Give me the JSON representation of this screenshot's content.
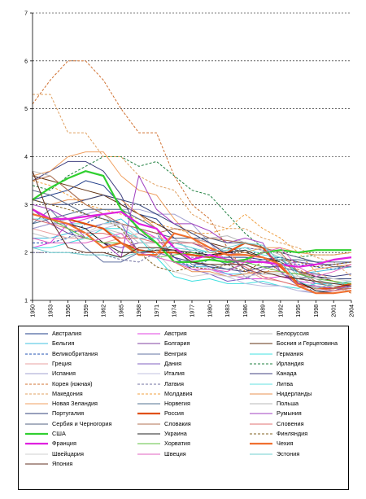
{
  "chart_data": {
    "type": "line",
    "title": "",
    "xlabel": "",
    "ylabel": "",
    "ylim": [
      1,
      7
    ],
    "yticks": [
      "1",
      "2",
      "3",
      "4",
      "5",
      "6",
      "7"
    ],
    "x": [
      1950,
      1953,
      1956,
      1959,
      1962,
      1965,
      1968,
      1971,
      1974,
      1977,
      1980,
      1983,
      1986,
      1989,
      1992,
      1995,
      1998,
      2001,
      2004
    ],
    "xticks": [
      "1950",
      "1953",
      "1956",
      "1959",
      "1962",
      "1965",
      "1968",
      "1971",
      "1974",
      "1977",
      "1980",
      "1983",
      "1986",
      "1989",
      "1992",
      "1995",
      "1998",
      "2001",
      "2004"
    ],
    "grid": "horizontal dashed",
    "legend_position": "bottom",
    "series": [
      {
        "name": "Австралия",
        "color": "#1f3c88",
        "dash": "solid",
        "width": 1,
        "values": [
          3.1,
          3.2,
          3.3,
          3.5,
          3.4,
          3.0,
          2.8,
          2.7,
          2.3,
          2.0,
          1.9,
          1.9,
          1.9,
          1.85,
          1.9,
          1.8,
          1.75,
          1.75,
          1.8
        ]
      },
      {
        "name": "Австрия",
        "color": "#e040e0",
        "dash": "solid",
        "width": 1,
        "values": [
          2.1,
          2.2,
          2.6,
          2.7,
          2.8,
          2.6,
          2.5,
          2.3,
          1.9,
          1.65,
          1.65,
          1.55,
          1.45,
          1.45,
          1.5,
          1.4,
          1.35,
          1.35,
          1.4
        ]
      },
      {
        "name": "Белоруссия",
        "color": "#c0c0c0",
        "dash": "solid",
        "width": 1,
        "values": [
          2.8,
          2.7,
          2.7,
          2.6,
          2.5,
          2.4,
          2.3,
          2.3,
          2.2,
          2.1,
          2.0,
          2.05,
          2.1,
          2.05,
          1.9,
          1.5,
          1.3,
          1.25,
          1.2
        ]
      },
      {
        "name": "Бельгия",
        "color": "#40c0e0",
        "dash": "solid",
        "width": 1,
        "values": [
          2.3,
          2.3,
          2.4,
          2.5,
          2.6,
          2.7,
          2.4,
          2.2,
          1.8,
          1.7,
          1.7,
          1.55,
          1.55,
          1.6,
          1.6,
          1.55,
          1.6,
          1.65,
          1.7
        ]
      },
      {
        "name": "Болгария",
        "color": "#8040a0",
        "dash": "solid",
        "width": 1,
        "values": [
          2.9,
          2.6,
          2.4,
          2.3,
          2.2,
          2.1,
          2.2,
          2.2,
          2.2,
          2.2,
          2.05,
          2.0,
          1.95,
          1.9,
          1.6,
          1.3,
          1.15,
          1.2,
          1.3
        ]
      },
      {
        "name": "Босния и Герцеговина",
        "color": "#603010",
        "dash": "solid",
        "width": 1,
        "values": [
          3.6,
          3.5,
          3.4,
          3.3,
          3.2,
          3.0,
          2.8,
          2.6,
          2.4,
          2.3,
          2.2,
          2.1,
          2.0,
          1.9,
          1.8,
          1.6,
          1.5,
          1.4,
          1.3
        ]
      },
      {
        "name": "Великобритания",
        "color": "#2050b0",
        "dash": "dashed",
        "width": 1,
        "values": [
          2.2,
          2.2,
          2.3,
          2.6,
          2.8,
          2.85,
          2.5,
          2.4,
          1.9,
          1.7,
          1.85,
          1.8,
          1.8,
          1.8,
          1.75,
          1.75,
          1.7,
          1.65,
          1.75
        ]
      },
      {
        "name": "Венгрия",
        "color": "#6070a0",
        "dash": "solid",
        "width": 1,
        "values": [
          2.6,
          2.9,
          2.5,
          2.1,
          1.8,
          1.8,
          2.0,
          1.9,
          2.2,
          2.1,
          1.9,
          1.75,
          1.85,
          1.8,
          1.85,
          1.6,
          1.35,
          1.3,
          1.3
        ]
      },
      {
        "name": "Германия",
        "color": "#40e0e0",
        "dash": "solid",
        "width": 1,
        "values": [
          2.1,
          2.1,
          2.2,
          2.3,
          2.5,
          2.5,
          2.3,
          1.9,
          1.5,
          1.4,
          1.45,
          1.35,
          1.35,
          1.4,
          1.3,
          1.25,
          1.35,
          1.35,
          1.35
        ]
      },
      {
        "name": "Греция",
        "color": "#e8a0a0",
        "dash": "solid",
        "width": 1,
        "values": [
          2.5,
          2.4,
          2.3,
          2.3,
          2.2,
          2.3,
          2.4,
          2.3,
          2.3,
          2.3,
          2.2,
          2.0,
          1.65,
          1.45,
          1.4,
          1.3,
          1.3,
          1.25,
          1.3
        ]
      },
      {
        "name": "Дания",
        "color": "#8060c0",
        "dash": "solid",
        "width": 1,
        "values": [
          2.5,
          2.6,
          2.6,
          2.5,
          2.6,
          2.6,
          2.0,
          2.0,
          1.9,
          1.65,
          1.55,
          1.4,
          1.45,
          1.65,
          1.75,
          1.8,
          1.75,
          1.75,
          1.8
        ]
      },
      {
        "name": "Ирландия",
        "color": "#208040",
        "dash": "dashed",
        "width": 1,
        "values": [
          3.4,
          3.3,
          3.6,
          3.8,
          4.0,
          4.0,
          3.8,
          3.9,
          3.6,
          3.3,
          3.2,
          2.8,
          2.4,
          2.1,
          2.0,
          1.9,
          1.95,
          1.95,
          2.0
        ]
      },
      {
        "name": "Испания",
        "color": "#a0a0d0",
        "dash": "solid",
        "width": 1,
        "values": [
          2.5,
          2.6,
          2.7,
          2.8,
          2.9,
          2.9,
          2.9,
          2.8,
          2.8,
          2.6,
          2.2,
          1.8,
          1.5,
          1.35,
          1.3,
          1.2,
          1.15,
          1.25,
          1.3
        ]
      },
      {
        "name": "Италия",
        "color": "#c0c0e0",
        "dash": "solid",
        "width": 1,
        "values": [
          2.4,
          2.3,
          2.3,
          2.4,
          2.5,
          2.6,
          2.5,
          2.4,
          2.3,
          2.0,
          1.65,
          1.5,
          1.35,
          1.3,
          1.3,
          1.2,
          1.2,
          1.25,
          1.3
        ]
      },
      {
        "name": "Канада",
        "color": "#404080",
        "dash": "solid",
        "width": 1,
        "values": [
          3.5,
          3.7,
          3.9,
          3.9,
          3.7,
          3.2,
          2.4,
          2.2,
          1.9,
          1.8,
          1.7,
          1.65,
          1.6,
          1.7,
          1.7,
          1.6,
          1.55,
          1.5,
          1.55
        ]
      },
      {
        "name": "Корея (южная)",
        "color": "#d07030",
        "dash": "dashed",
        "width": 1,
        "values": [
          5.1,
          5.6,
          6.0,
          6.0,
          5.6,
          5.0,
          4.5,
          4.5,
          3.6,
          3.0,
          2.7,
          2.1,
          1.6,
          1.55,
          1.75,
          1.65,
          1.45,
          1.3,
          1.15
        ]
      },
      {
        "name": "Латвия",
        "color": "#7070a0",
        "dash": "dashed",
        "width": 1,
        "values": [
          2.0,
          2.0,
          2.0,
          1.95,
          1.95,
          1.85,
          1.8,
          2.0,
          2.0,
          1.9,
          1.9,
          2.0,
          2.1,
          2.05,
          1.7,
          1.4,
          1.15,
          1.2,
          1.25
        ]
      },
      {
        "name": "Литва",
        "color": "#60e0e0",
        "dash": "solid",
        "width": 1,
        "values": [
          2.7,
          2.7,
          2.6,
          2.6,
          2.5,
          2.3,
          2.3,
          2.3,
          2.2,
          2.1,
          2.0,
          2.05,
          2.1,
          1.95,
          1.9,
          1.55,
          1.45,
          1.3,
          1.25
        ]
      },
      {
        "name": "Македония",
        "color": "#e0a060",
        "dash": "dashed",
        "width": 1,
        "values": [
          5.3,
          5.3,
          4.5,
          4.5,
          4.0,
          4.0,
          3.6,
          3.4,
          3.3,
          2.8,
          2.6,
          2.5,
          2.5,
          2.3,
          2.2,
          2.1,
          1.9,
          1.8,
          1.5
        ]
      },
      {
        "name": "Молдавия",
        "color": "#f0a040",
        "dash": "dashed",
        "width": 1,
        "values": [
          3.5,
          3.4,
          3.2,
          3.0,
          2.9,
          2.8,
          2.7,
          2.6,
          2.5,
          2.4,
          2.4,
          2.5,
          2.8,
          2.5,
          2.3,
          2.0,
          1.6,
          1.4,
          1.3
        ]
      },
      {
        "name": "Нидерланды",
        "color": "#e89050",
        "dash": "solid",
        "width": 1,
        "values": [
          3.1,
          3.0,
          3.1,
          3.1,
          3.2,
          3.1,
          2.8,
          2.5,
          1.8,
          1.6,
          1.6,
          1.5,
          1.55,
          1.6,
          1.6,
          1.55,
          1.65,
          1.7,
          1.75
        ]
      },
      {
        "name": "Новая Зеландия",
        "color": "#f0a060",
        "dash": "solid",
        "width": 1,
        "values": [
          3.6,
          3.7,
          4.0,
          4.1,
          4.1,
          3.6,
          3.3,
          3.2,
          2.7,
          2.3,
          2.0,
          1.95,
          2.0,
          2.1,
          2.1,
          2.0,
          1.95,
          1.95,
          2.0
        ]
      },
      {
        "name": "Норвегия",
        "color": "#507090",
        "dash": "solid",
        "width": 1,
        "values": [
          2.6,
          2.7,
          2.8,
          2.9,
          2.9,
          2.9,
          2.7,
          2.5,
          2.1,
          1.75,
          1.75,
          1.65,
          1.75,
          1.85,
          1.85,
          1.85,
          1.8,
          1.8,
          1.8
        ]
      },
      {
        "name": "Польша",
        "color": "#b8b8b8",
        "dash": "solid",
        "width": 1,
        "values": [
          3.7,
          3.6,
          3.3,
          3.0,
          2.8,
          2.5,
          2.2,
          2.2,
          2.25,
          2.2,
          2.3,
          2.35,
          2.2,
          2.1,
          1.95,
          1.6,
          1.45,
          1.3,
          1.25
        ]
      },
      {
        "name": "Португалия",
        "color": "#304078",
        "dash": "solid",
        "width": 1,
        "values": [
          3.1,
          3.0,
          3.0,
          3.1,
          3.2,
          3.1,
          3.0,
          2.8,
          2.6,
          2.4,
          2.2,
          1.95,
          1.65,
          1.55,
          1.55,
          1.45,
          1.5,
          1.45,
          1.45
        ]
      },
      {
        "name": "Россия",
        "color": "#e05010",
        "dash": "solid",
        "width": 2.2,
        "values": [
          2.9,
          2.7,
          2.7,
          2.6,
          2.5,
          2.2,
          2.05,
          2.0,
          2.0,
          1.95,
          1.9,
          2.0,
          2.2,
          2.1,
          1.7,
          1.35,
          1.25,
          1.25,
          1.35
        ]
      },
      {
        "name": "Румыния",
        "color": "#a040c0",
        "dash": "solid",
        "width": 1,
        "values": [
          3.0,
          2.9,
          2.7,
          2.3,
          2.2,
          1.9,
          3.6,
          2.9,
          2.6,
          2.6,
          2.45,
          2.2,
          2.3,
          2.2,
          1.6,
          1.35,
          1.3,
          1.25,
          1.3
        ]
      },
      {
        "name": "Сербия и Черногория",
        "color": "#506080",
        "dash": "solid",
        "width": 1,
        "values": [
          3.3,
          3.2,
          3.0,
          2.8,
          2.7,
          2.6,
          2.5,
          2.4,
          2.3,
          2.3,
          2.3,
          2.2,
          2.2,
          2.1,
          2.0,
          1.9,
          1.8,
          1.7,
          1.7
        ]
      },
      {
        "name": "Словакия",
        "color": "#b07050",
        "dash": "solid",
        "width": 1,
        "values": [
          3.5,
          3.6,
          3.3,
          3.0,
          2.8,
          2.6,
          2.5,
          2.4,
          2.5,
          2.45,
          2.3,
          2.25,
          2.2,
          2.1,
          2.0,
          1.6,
          1.4,
          1.25,
          1.25
        ]
      },
      {
        "name": "Словения",
        "color": "#e07070",
        "dash": "solid",
        "width": 1,
        "values": [
          2.7,
          2.6,
          2.5,
          2.4,
          2.4,
          2.3,
          2.3,
          2.2,
          2.2,
          2.2,
          2.1,
          1.8,
          1.7,
          1.5,
          1.4,
          1.3,
          1.25,
          1.2,
          1.25
        ]
      },
      {
        "name": "США",
        "color": "#30d030",
        "dash": "solid",
        "width": 2.2,
        "values": [
          3.1,
          3.35,
          3.55,
          3.7,
          3.6,
          2.9,
          2.5,
          2.2,
          1.8,
          1.8,
          1.85,
          1.8,
          1.85,
          2.0,
          2.05,
          2.0,
          2.05,
          2.05,
          2.05
        ]
      },
      {
        "name": "Украина",
        "color": "#202020",
        "dash": "solid",
        "width": 1,
        "values": [
          2.8,
          2.7,
          2.6,
          2.5,
          2.2,
          2.0,
          2.0,
          2.05,
          2.05,
          2.0,
          1.95,
          2.0,
          2.05,
          1.9,
          1.8,
          1.4,
          1.2,
          1.15,
          1.2
        ]
      },
      {
        "name": "Финляндия",
        "color": "#806020",
        "dash": "dashed",
        "width": 1,
        "values": [
          3.1,
          3.0,
          2.9,
          2.8,
          2.7,
          2.5,
          2.0,
          1.7,
          1.6,
          1.7,
          1.65,
          1.75,
          1.6,
          1.8,
          1.85,
          1.8,
          1.7,
          1.75,
          1.8
        ]
      },
      {
        "name": "Франция",
        "color": "#e020e0",
        "dash": "solid",
        "width": 2.2,
        "values": [
          2.9,
          2.7,
          2.7,
          2.75,
          2.8,
          2.85,
          2.6,
          2.5,
          2.1,
          1.85,
          1.95,
          1.85,
          1.8,
          1.8,
          1.75,
          1.7,
          1.75,
          1.85,
          1.9
        ]
      },
      {
        "name": "Хорватия",
        "color": "#60c040",
        "dash": "solid",
        "width": 1,
        "values": [
          2.8,
          2.7,
          2.5,
          2.3,
          2.2,
          2.2,
          2.0,
          1.9,
          1.95,
          2.0,
          1.9,
          1.85,
          1.8,
          1.7,
          1.6,
          1.55,
          1.45,
          1.4,
          1.35
        ]
      },
      {
        "name": "Чехия",
        "color": "#f07030",
        "dash": "solid",
        "width": 2.2,
        "values": [
          2.8,
          2.7,
          2.6,
          2.4,
          2.1,
          2.2,
          1.95,
          1.95,
          2.4,
          2.3,
          2.1,
          1.95,
          1.95,
          1.9,
          1.75,
          1.3,
          1.15,
          1.15,
          1.2
        ]
      },
      {
        "name": "Швейцария",
        "color": "#d0d0d0",
        "dash": "solid",
        "width": 1,
        "values": [
          2.4,
          2.3,
          2.3,
          2.4,
          2.6,
          2.6,
          2.3,
          2.0,
          1.6,
          1.5,
          1.55,
          1.5,
          1.5,
          1.55,
          1.55,
          1.5,
          1.45,
          1.45,
          1.4
        ]
      },
      {
        "name": "Швеция",
        "color": "#e060c0",
        "dash": "solid",
        "width": 1,
        "values": [
          2.3,
          2.2,
          2.2,
          2.2,
          2.3,
          2.4,
          2.0,
          1.9,
          1.8,
          1.65,
          1.65,
          1.6,
          1.8,
          2.0,
          2.1,
          1.7,
          1.5,
          1.6,
          1.75
        ]
      },
      {
        "name": "Эстония",
        "color": "#70d0d0",
        "dash": "solid",
        "width": 1,
        "values": [
          2.1,
          2.0,
          2.0,
          1.95,
          1.95,
          1.9,
          2.0,
          2.1,
          2.1,
          2.05,
          2.0,
          2.1,
          2.2,
          2.15,
          1.8,
          1.4,
          1.25,
          1.35,
          1.4
        ]
      },
      {
        "name": "Япония",
        "color": "#603020",
        "dash": "solid",
        "width": 1,
        "values": [
          3.7,
          2.7,
          2.1,
          2.0,
          2.0,
          1.9,
          2.1,
          2.1,
          2.05,
          1.8,
          1.75,
          1.75,
          1.75,
          1.6,
          1.5,
          1.45,
          1.4,
          1.35,
          1.3
        ]
      }
    ]
  }
}
